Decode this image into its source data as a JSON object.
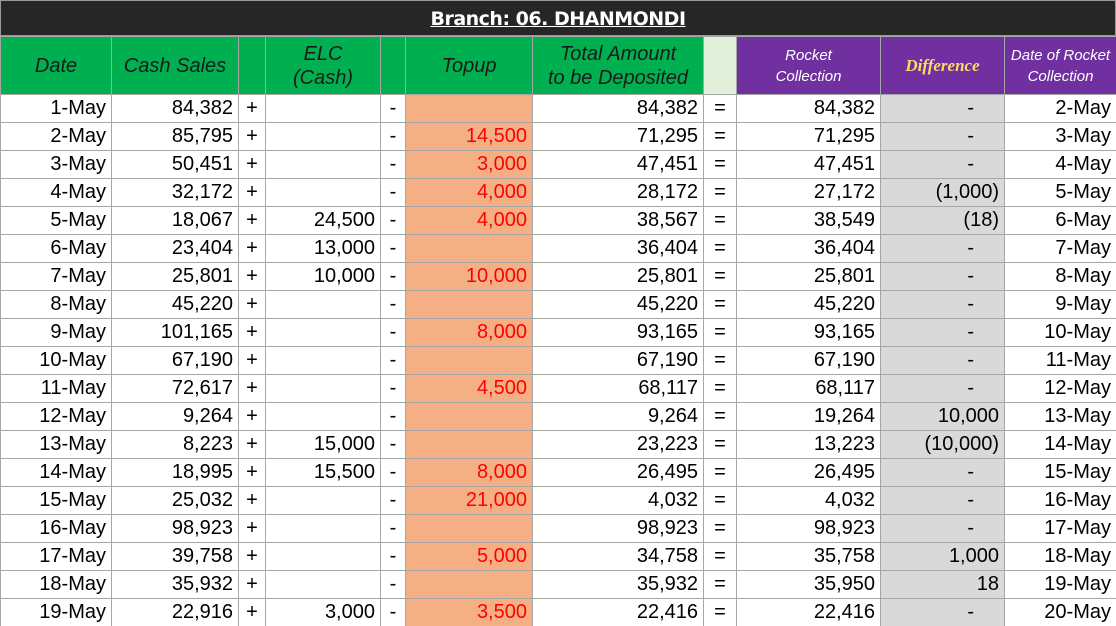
{
  "title": "Branch: 06. DHANMONDI",
  "table": {
    "header": [
      "Date",
      "Cash Sales",
      null,
      "ELC\n(Cash)",
      null,
      "Topup",
      "Total Amount\nto be Deposited",
      null,
      "Rocket\nCollection",
      "Difference",
      "Date of Rocket\nCollection"
    ],
    "rows": [
      [
        "1-May",
        "84,382",
        "+",
        null,
        "-",
        null,
        "84,382",
        "=",
        "84,382",
        "-",
        "2-May"
      ],
      [
        "2-May",
        "85,795",
        "+",
        null,
        "-",
        "14,500",
        "71,295",
        "=",
        "71,295",
        "-",
        "3-May"
      ],
      [
        "3-May",
        "50,451",
        "+",
        null,
        "-",
        "3,000",
        "47,451",
        "=",
        "47,451",
        "-",
        "4-May"
      ],
      [
        "4-May",
        "32,172",
        "+",
        null,
        "-",
        "4,000",
        "28,172",
        "=",
        "27,172",
        "(1,000)",
        "5-May"
      ],
      [
        "5-May",
        "18,067",
        "+",
        "24,500",
        "-",
        "4,000",
        "38,567",
        "=",
        "38,549",
        "(18)",
        "6-May"
      ],
      [
        "6-May",
        "23,404",
        "+",
        "13,000",
        "-",
        null,
        "36,404",
        "=",
        "36,404",
        "-",
        "7-May"
      ],
      [
        "7-May",
        "25,801",
        "+",
        "10,000",
        "-",
        "10,000",
        "25,801",
        "=",
        "25,801",
        "-",
        "8-May"
      ],
      [
        "8-May",
        "45,220",
        "+",
        null,
        "-",
        null,
        "45,220",
        "=",
        "45,220",
        "-",
        "9-May"
      ],
      [
        "9-May",
        "101,165",
        "+",
        null,
        "-",
        "8,000",
        "93,165",
        "=",
        "93,165",
        "-",
        "10-May"
      ],
      [
        "10-May",
        "67,190",
        "+",
        null,
        "-",
        null,
        "67,190",
        "=",
        "67,190",
        "-",
        "11-May"
      ],
      [
        "11-May",
        "72,617",
        "+",
        null,
        "-",
        "4,500",
        "68,117",
        "=",
        "68,117",
        "-",
        "12-May"
      ],
      [
        "12-May",
        "9,264",
        "+",
        null,
        "-",
        null,
        "9,264",
        "=",
        "19,264",
        "10,000",
        "13-May"
      ],
      [
        "13-May",
        "8,223",
        "+",
        "15,000",
        "-",
        null,
        "23,223",
        "=",
        "13,223",
        "(10,000)",
        "14-May"
      ],
      [
        "14-May",
        "18,995",
        "+",
        "15,500",
        "-",
        "8,000",
        "26,495",
        "=",
        "26,495",
        "-",
        "15-May"
      ],
      [
        "15-May",
        "25,032",
        "+",
        null,
        "-",
        "21,000",
        "4,032",
        "=",
        "4,032",
        "-",
        "16-May"
      ],
      [
        "16-May",
        "98,923",
        "+",
        null,
        "-",
        null,
        "98,923",
        "=",
        "98,923",
        "-",
        "17-May"
      ],
      [
        "17-May",
        "39,758",
        "+",
        null,
        "-",
        "5,000",
        "34,758",
        "=",
        "35,758",
        "1,000",
        "18-May"
      ],
      [
        "18-May",
        "35,932",
        "+",
        null,
        "-",
        null,
        "35,932",
        "=",
        "35,950",
        "18",
        "19-May"
      ],
      [
        "19-May",
        "22,916",
        "+",
        "3,000",
        "-",
        "3,500",
        "22,416",
        "=",
        "22,416",
        "-",
        "20-May"
      ]
    ]
  }
}
